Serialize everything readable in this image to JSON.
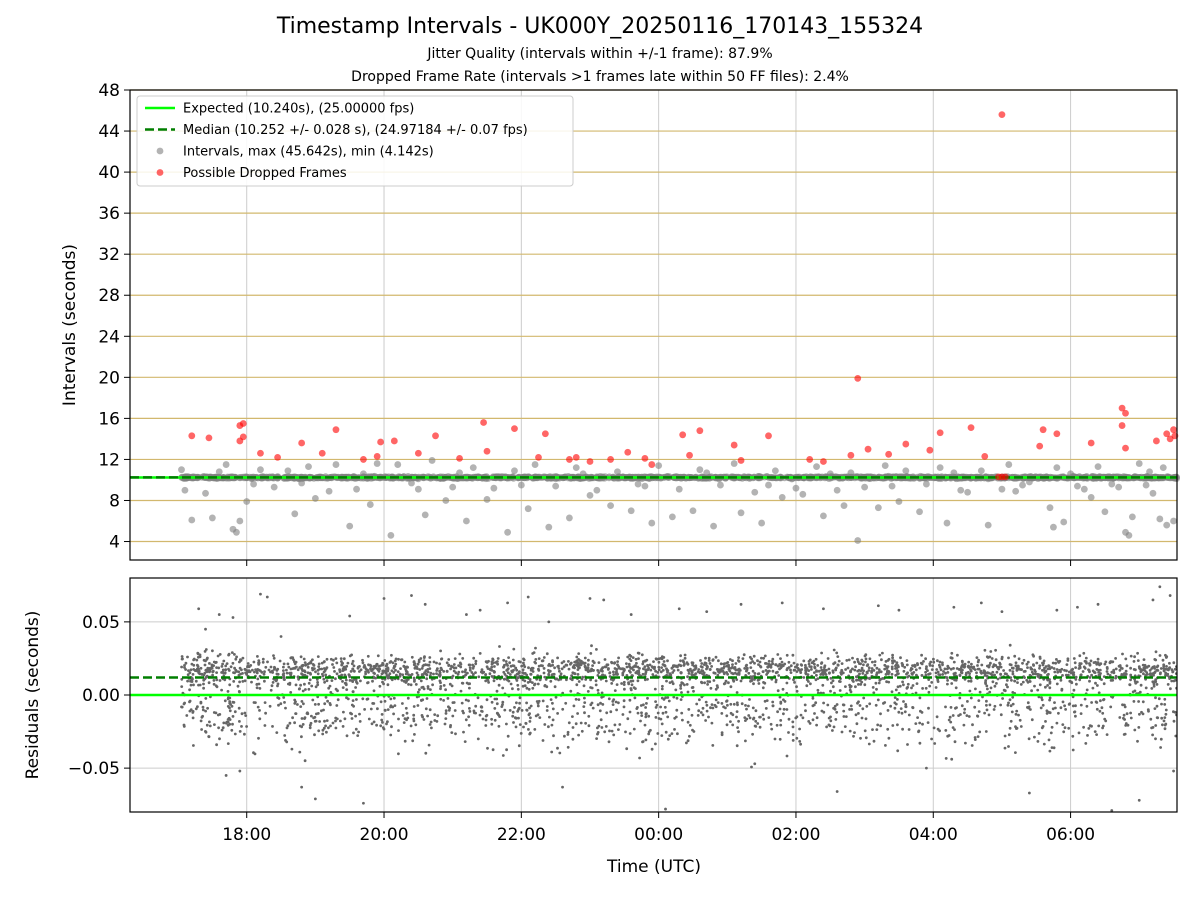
{
  "title": "Timestamp Intervals - UK000Y_20250116_170143_155324",
  "subtitles": [
    "Jitter Quality (intervals within +/-1 frame): 87.9%",
    "Dropped Frame Rate (intervals >1 frames late within 50 FF files): 2.4%"
  ],
  "colors": {
    "expected": "#00ff00",
    "median": "#007f00",
    "intervals": "#808080",
    "dropped": "#ff0000",
    "grid_horizontal": "#d2b86e",
    "grid_vertical": "#cccccc",
    "residual_points": "#666666"
  },
  "chart_data": [
    {
      "type": "scatter",
      "title": "",
      "xlabel": "",
      "ylabel": "Intervals (seconds)",
      "ylim": [
        2.2,
        48
      ],
      "xlim_hours": [
        -7.7,
        7.55
      ],
      "yticks": [
        4,
        8,
        12,
        16,
        20,
        24,
        28,
        32,
        36,
        40,
        44,
        48
      ],
      "grid": true,
      "legend_position": "top-left",
      "lines": [
        {
          "name": "Expected (10.240s), (25.00000 fps)",
          "y": 10.24,
          "style": "solid"
        },
        {
          "name": "Median (10.252 +/- 0.028 s), (24.97184 +/- 0.07 fps)",
          "y": 10.252,
          "style": "dashed"
        }
      ],
      "series": [
        {
          "name": "Intervals, max (45.642s), min (4.142s)",
          "points": [
            [
              -6.8,
              6.1
            ],
            [
              -6.5,
              6.3
            ],
            [
              -6.2,
              5.2
            ],
            [
              -6.15,
              4.9
            ],
            [
              -6.1,
              6.0
            ],
            [
              -6.0,
              7.9
            ],
            [
              -5.3,
              6.7
            ],
            [
              -5.0,
              8.2
            ],
            [
              -4.5,
              5.5
            ],
            [
              -4.2,
              7.6
            ],
            [
              -3.9,
              4.6
            ],
            [
              -3.4,
              6.6
            ],
            [
              -3.1,
              8.0
            ],
            [
              -2.8,
              6.0
            ],
            [
              -2.5,
              8.1
            ],
            [
              -2.2,
              4.9
            ],
            [
              -1.9,
              7.2
            ],
            [
              -1.6,
              5.4
            ],
            [
              -1.3,
              6.3
            ],
            [
              -1.0,
              8.5
            ],
            [
              -0.7,
              7.5
            ],
            [
              -0.4,
              7.0
            ],
            [
              -0.1,
              5.8
            ],
            [
              0.2,
              6.4
            ],
            [
              0.5,
              7.0
            ],
            [
              0.8,
              5.5
            ],
            [
              1.2,
              6.8
            ],
            [
              1.5,
              5.8
            ],
            [
              1.8,
              8.3
            ],
            [
              2.1,
              8.6
            ],
            [
              2.4,
              6.5
            ],
            [
              2.7,
              7.5
            ],
            [
              2.9,
              4.1
            ],
            [
              3.2,
              7.3
            ],
            [
              3.5,
              7.9
            ],
            [
              3.8,
              6.9
            ],
            [
              4.2,
              5.8
            ],
            [
              4.5,
              8.8
            ],
            [
              4.8,
              5.6
            ],
            [
              5.0,
              9.1
            ],
            [
              5.2,
              8.9
            ],
            [
              5.7,
              7.3
            ],
            [
              5.75,
              5.4
            ],
            [
              5.9,
              5.9
            ],
            [
              6.1,
              9.4
            ],
            [
              6.3,
              8.3
            ],
            [
              6.5,
              6.9
            ],
            [
              6.8,
              4.9
            ],
            [
              6.85,
              4.6
            ],
            [
              6.9,
              6.4
            ],
            [
              7.1,
              9.5
            ],
            [
              7.3,
              6.2
            ],
            [
              7.4,
              5.6
            ],
            [
              7.5,
              6.0
            ],
            [
              7.2,
              8.7
            ],
            [
              -6.9,
              9.0
            ],
            [
              -6.95,
              11.0
            ],
            [
              -6.6,
              8.7
            ],
            [
              -6.3,
              11.5
            ],
            [
              -5.8,
              11.0
            ],
            [
              -5.6,
              9.3
            ],
            [
              -5.4,
              10.9
            ],
            [
              -5.1,
              11.3
            ],
            [
              -4.8,
              8.9
            ],
            [
              -4.7,
              11.5
            ],
            [
              -4.4,
              9.1
            ],
            [
              -4.1,
              11.6
            ],
            [
              -3.8,
              11.5
            ],
            [
              -3.6,
              9.7
            ],
            [
              -3.3,
              11.9
            ],
            [
              -3.0,
              9.3
            ],
            [
              -2.7,
              11.2
            ],
            [
              -2.4,
              9.2
            ],
            [
              -2.1,
              10.9
            ],
            [
              -1.8,
              11.5
            ],
            [
              -1.5,
              9.4
            ],
            [
              -1.2,
              11.2
            ],
            [
              -0.9,
              9.0
            ],
            [
              -0.6,
              10.8
            ],
            [
              -0.3,
              9.6
            ],
            [
              0.0,
              11.4
            ],
            [
              0.3,
              9.1
            ],
            [
              0.6,
              11.0
            ],
            [
              0.9,
              9.5
            ],
            [
              1.1,
              11.6
            ],
            [
              1.4,
              8.8
            ],
            [
              1.7,
              10.9
            ],
            [
              2.0,
              9.2
            ],
            [
              2.3,
              11.3
            ],
            [
              2.6,
              9.0
            ],
            [
              2.8,
              10.7
            ],
            [
              3.0,
              9.3
            ],
            [
              3.3,
              11.4
            ],
            [
              3.6,
              10.9
            ],
            [
              3.9,
              9.6
            ],
            [
              4.1,
              11.2
            ],
            [
              4.4,
              9.0
            ],
            [
              4.7,
              10.9
            ],
            [
              5.1,
              11.5
            ],
            [
              5.4,
              9.8
            ],
            [
              5.8,
              11.2
            ],
            [
              6.2,
              9.1
            ],
            [
              6.4,
              11.3
            ],
            [
              6.7,
              9.3
            ],
            [
              7.0,
              11.6
            ],
            [
              7.35,
              11.2
            ],
            [
              -6.4,
              10.8
            ],
            [
              -5.9,
              9.6
            ],
            [
              -5.2,
              9.7
            ],
            [
              -4.3,
              10.6
            ],
            [
              -3.5,
              9.1
            ],
            [
              -2.9,
              10.7
            ],
            [
              -2.0,
              9.5
            ],
            [
              -1.1,
              10.6
            ],
            [
              -0.2,
              9.4
            ],
            [
              0.7,
              10.7
            ],
            [
              1.6,
              9.5
            ],
            [
              2.5,
              10.6
            ],
            [
              3.4,
              9.4
            ],
            [
              4.3,
              10.7
            ],
            [
              5.3,
              9.5
            ],
            [
              6.0,
              10.6
            ],
            [
              6.6,
              9.6
            ],
            [
              7.15,
              10.8
            ]
          ]
        },
        {
          "name": "Possible Dropped Frames",
          "points": [
            [
              -6.8,
              14.3
            ],
            [
              -6.55,
              14.1
            ],
            [
              -6.1,
              15.3
            ],
            [
              -6.05,
              15.5
            ],
            [
              -6.1,
              13.8
            ],
            [
              -6.05,
              14.2
            ],
            [
              -5.8,
              12.6
            ],
            [
              -5.55,
              12.2
            ],
            [
              -5.2,
              13.6
            ],
            [
              -4.9,
              12.6
            ],
            [
              -4.7,
              14.9
            ],
            [
              -4.3,
              12.0
            ],
            [
              -4.1,
              12.3
            ],
            [
              -3.85,
              13.8
            ],
            [
              -3.5,
              12.6
            ],
            [
              -3.25,
              14.3
            ],
            [
              -2.9,
              12.1
            ],
            [
              -2.55,
              15.6
            ],
            [
              -2.5,
              12.8
            ],
            [
              -2.1,
              15.0
            ],
            [
              -1.75,
              12.2
            ],
            [
              -1.65,
              14.5
            ],
            [
              -1.2,
              12.2
            ],
            [
              -1.0,
              11.8
            ],
            [
              -0.7,
              12.0
            ],
            [
              -0.45,
              12.7
            ],
            [
              -0.1,
              11.5
            ],
            [
              0.35,
              14.4
            ],
            [
              0.45,
              12.4
            ],
            [
              0.6,
              14.8
            ],
            [
              1.1,
              13.4
            ],
            [
              1.6,
              14.3
            ],
            [
              2.2,
              12.0
            ],
            [
              2.4,
              11.8
            ],
            [
              2.8,
              12.4
            ],
            [
              2.9,
              19.9
            ],
            [
              3.05,
              13.0
            ],
            [
              3.35,
              12.5
            ],
            [
              3.6,
              13.5
            ],
            [
              3.95,
              12.9
            ],
            [
              4.1,
              14.6
            ],
            [
              4.55,
              15.1
            ],
            [
              4.75,
              12.3
            ],
            [
              5.0,
              45.6
            ],
            [
              5.55,
              13.3
            ],
            [
              5.6,
              14.9
            ],
            [
              5.8,
              14.5
            ],
            [
              6.3,
              13.6
            ],
            [
              6.75,
              17.0
            ],
            [
              6.8,
              16.5
            ],
            [
              6.75,
              15.3
            ],
            [
              6.8,
              13.1
            ],
            [
              7.25,
              13.8
            ],
            [
              7.45,
              14.0
            ],
            [
              7.5,
              14.9
            ],
            [
              7.52,
              14.3
            ],
            [
              -4.05,
              13.7
            ],
            [
              -1.3,
              12.0
            ],
            [
              -0.2,
              12.1
            ],
            [
              1.2,
              11.9
            ],
            [
              7.4,
              14.5
            ],
            [
              4.95,
              10.3
            ],
            [
              5.05,
              10.3
            ],
            [
              5.0,
              10.3
            ]
          ]
        }
      ]
    },
    {
      "type": "scatter",
      "title": "",
      "xlabel": "Time (UTC)",
      "ylabel": "Residuals (seconds)",
      "ylim": [
        -0.08,
        0.08
      ],
      "yticks": [
        -0.05,
        0.0,
        0.05
      ],
      "ytick_labels": [
        "−0.05",
        "0.00",
        "0.05"
      ],
      "xticks_hours": [
        -6,
        -4,
        -2,
        0,
        2,
        4,
        6
      ],
      "xtick_labels": [
        "18:00",
        "20:00",
        "22:00",
        "00:00",
        "02:00",
        "04:00",
        "06:00"
      ],
      "grid": true,
      "lines": [
        {
          "name": "Expected",
          "y": 0.0,
          "style": "solid"
        },
        {
          "name": "Median",
          "y": 0.012,
          "style": "dashed"
        }
      ],
      "series": [
        {
          "name": "",
          "points": [
            [
              -6.7,
              0.059
            ],
            [
              -6.6,
              0.045
            ],
            [
              -6.4,
              0.055
            ],
            [
              -6.2,
              0.053
            ],
            [
              -6.1,
              -0.052
            ],
            [
              -6.3,
              -0.055
            ],
            [
              -5.8,
              0.069
            ],
            [
              -5.7,
              0.067
            ],
            [
              -5.5,
              0.04
            ],
            [
              -5.2,
              -0.063
            ],
            [
              -5.0,
              -0.071
            ],
            [
              -4.5,
              0.054
            ],
            [
              -4.3,
              -0.074
            ],
            [
              -4.0,
              0.066
            ],
            [
              -3.6,
              0.068
            ],
            [
              -3.4,
              0.062
            ],
            [
              -2.8,
              0.055
            ],
            [
              -2.6,
              0.058
            ],
            [
              -2.2,
              0.063
            ],
            [
              -1.9,
              0.067
            ],
            [
              -1.6,
              0.05
            ],
            [
              -1.4,
              -0.063
            ],
            [
              -1.0,
              0.066
            ],
            [
              -0.8,
              0.065
            ],
            [
              -0.4,
              0.055
            ],
            [
              0.1,
              -0.078
            ],
            [
              0.3,
              0.059
            ],
            [
              0.7,
              0.057
            ],
            [
              1.2,
              0.062
            ],
            [
              1.4,
              -0.047
            ],
            [
              1.8,
              0.063
            ],
            [
              2.4,
              0.059
            ],
            [
              2.6,
              -0.066
            ],
            [
              3.2,
              0.061
            ],
            [
              3.5,
              0.058
            ],
            [
              3.9,
              -0.05
            ],
            [
              4.3,
              0.06
            ],
            [
              4.7,
              0.063
            ],
            [
              5.0,
              0.057
            ],
            [
              5.4,
              -0.067
            ],
            [
              5.8,
              0.058
            ],
            [
              6.1,
              0.06
            ],
            [
              6.4,
              0.062
            ],
            [
              6.6,
              -0.079
            ],
            [
              6.8,
              0.081
            ],
            [
              7.0,
              -0.072
            ],
            [
              7.2,
              0.065
            ],
            [
              7.45,
              0.068
            ],
            [
              7.5,
              -0.052
            ],
            [
              7.3,
              0.074
            ]
          ]
        }
      ]
    }
  ]
}
